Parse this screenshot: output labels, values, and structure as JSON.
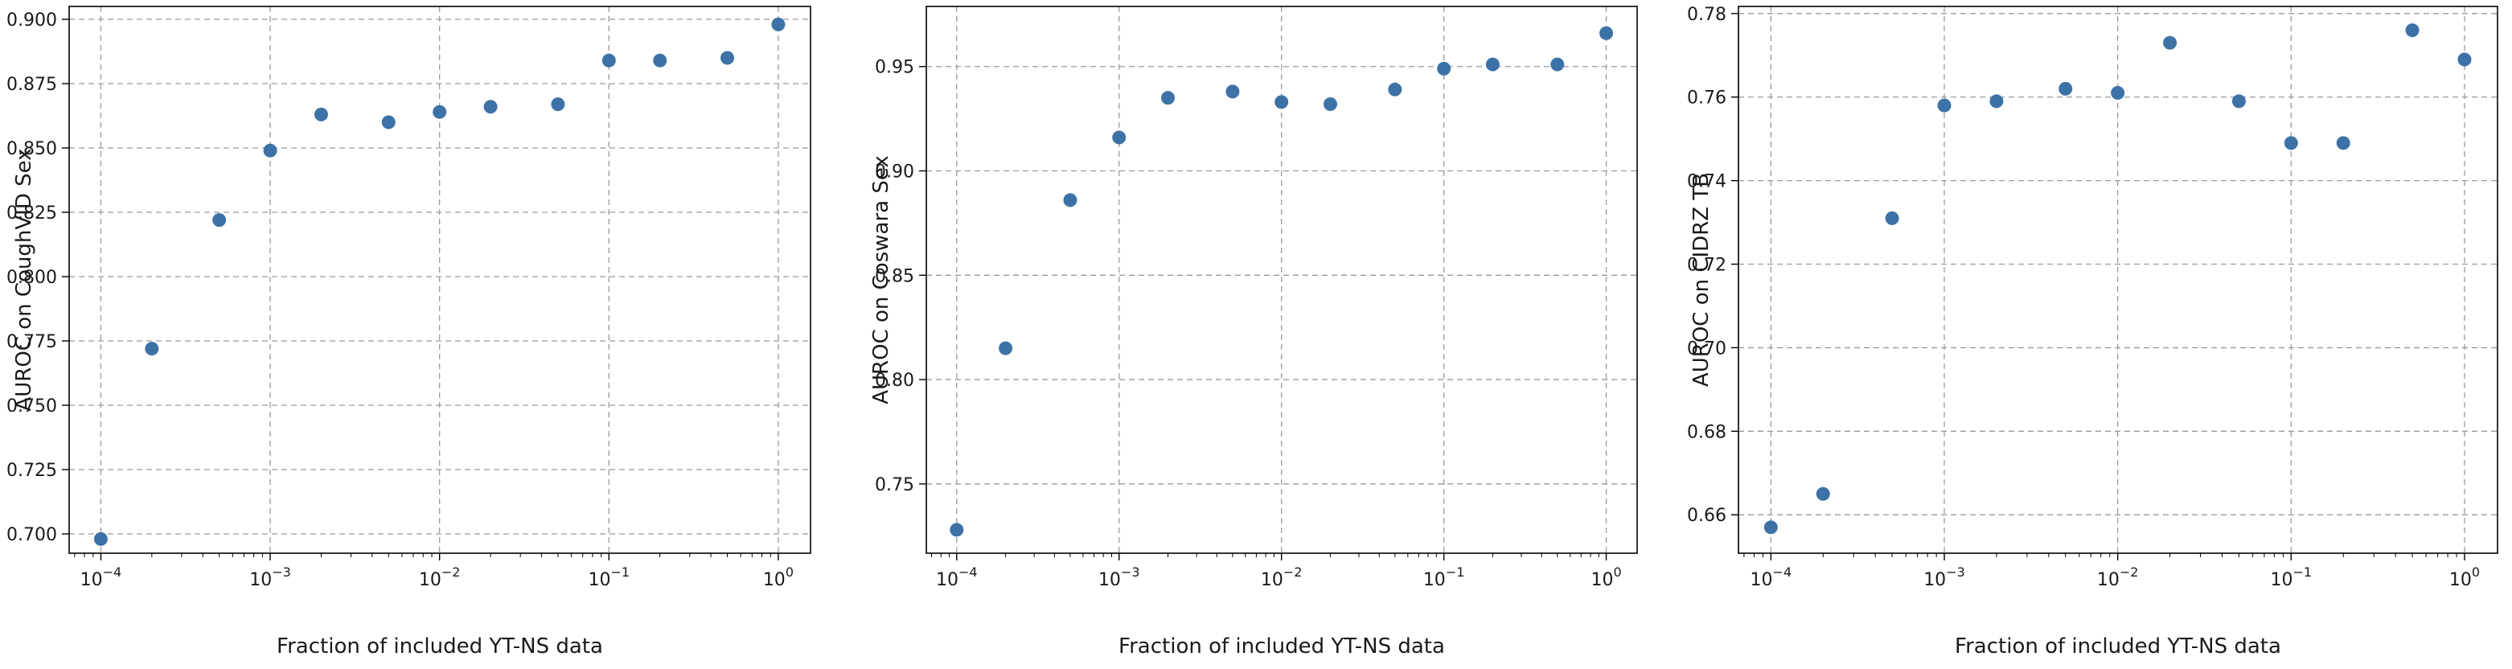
{
  "chart_data": [
    {
      "type": "scatter",
      "xlabel": "Fraction of included YT-NS data",
      "ylabel": "AUROC on CoughVID Sex",
      "xscale": "log",
      "xlim": [
        6.5e-05,
        1.55
      ],
      "ylim": [
        0.6925,
        0.905
      ],
      "xticks": [
        0.0001,
        0.001,
        0.01,
        0.1,
        1
      ],
      "xtick_labels": [
        {
          "base": "10",
          "exp": "−4"
        },
        {
          "base": "10",
          "exp": "−3"
        },
        {
          "base": "10",
          "exp": "−2"
        },
        {
          "base": "10",
          "exp": "−1"
        },
        {
          "base": "10",
          "exp": "0"
        }
      ],
      "yticks": [
        0.7,
        0.725,
        0.75,
        0.775,
        0.8,
        0.825,
        0.85,
        0.875,
        0.9
      ],
      "ytick_labels": [
        "0.700",
        "0.725",
        "0.750",
        "0.775",
        "0.800",
        "0.825",
        "0.850",
        "0.875",
        "0.900"
      ],
      "grid": true,
      "marker_color": "#3d72a6",
      "x": [
        0.0001,
        0.0002,
        0.0005,
        0.001,
        0.002,
        0.005,
        0.01,
        0.02,
        0.05,
        0.1,
        0.2,
        0.5,
        1
      ],
      "y": [
        0.698,
        0.772,
        0.822,
        0.849,
        0.863,
        0.86,
        0.864,
        0.866,
        0.867,
        0.884,
        0.884,
        0.885,
        0.898
      ]
    },
    {
      "type": "scatter",
      "xlabel": "Fraction of included YT-NS data",
      "ylabel": "AUROC on Coswara Sex",
      "xscale": "log",
      "xlim": [
        6.5e-05,
        1.55
      ],
      "ylim": [
        0.7168,
        0.9788
      ],
      "xticks": [
        0.0001,
        0.001,
        0.01,
        0.1,
        1
      ],
      "xtick_labels": [
        {
          "base": "10",
          "exp": "−4"
        },
        {
          "base": "10",
          "exp": "−3"
        },
        {
          "base": "10",
          "exp": "−2"
        },
        {
          "base": "10",
          "exp": "−1"
        },
        {
          "base": "10",
          "exp": "0"
        }
      ],
      "yticks": [
        0.75,
        0.8,
        0.85,
        0.9,
        0.95
      ],
      "ytick_labels": [
        "0.75",
        "0.80",
        "0.85",
        "0.90",
        "0.95"
      ],
      "grid": true,
      "marker_color": "#3d72a6",
      "x": [
        0.0001,
        0.0002,
        0.0005,
        0.001,
        0.002,
        0.005,
        0.01,
        0.02,
        0.05,
        0.1,
        0.2,
        0.5,
        1
      ],
      "y": [
        0.728,
        0.815,
        0.886,
        0.916,
        0.935,
        0.938,
        0.933,
        0.932,
        0.939,
        0.949,
        0.951,
        0.951,
        0.966
      ]
    },
    {
      "type": "scatter",
      "xlabel": "Fraction of included YT-NS data",
      "ylabel": "AUROC on CIDRZ TB",
      "xscale": "log",
      "xlim": [
        6.5e-05,
        1.55
      ],
      "ylim": [
        0.6508,
        0.7817
      ],
      "xticks": [
        0.0001,
        0.001,
        0.01,
        0.1,
        1
      ],
      "xtick_labels": [
        {
          "base": "10",
          "exp": "−4"
        },
        {
          "base": "10",
          "exp": "−3"
        },
        {
          "base": "10",
          "exp": "−2"
        },
        {
          "base": "10",
          "exp": "−1"
        },
        {
          "base": "10",
          "exp": "0"
        }
      ],
      "yticks": [
        0.66,
        0.68,
        0.7,
        0.72,
        0.74,
        0.76,
        0.78
      ],
      "ytick_labels": [
        "0.66",
        "0.68",
        "0.70",
        "0.72",
        "0.74",
        "0.76",
        "0.78"
      ],
      "grid": true,
      "marker_color": "#3d72a6",
      "x": [
        0.0001,
        0.0002,
        0.0005,
        0.001,
        0.002,
        0.005,
        0.01,
        0.02,
        0.05,
        0.1,
        0.2,
        0.5,
        1
      ],
      "y": [
        0.657,
        0.665,
        0.731,
        0.758,
        0.759,
        0.762,
        0.761,
        0.773,
        0.759,
        0.749,
        0.749,
        0.776,
        0.769
      ]
    }
  ]
}
